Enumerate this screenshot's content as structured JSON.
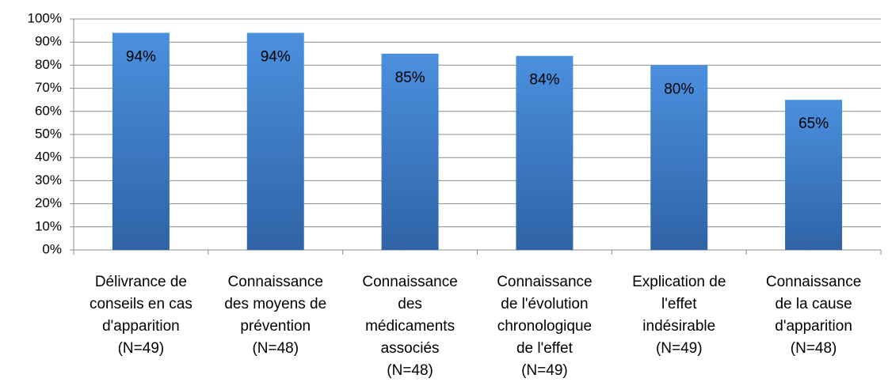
{
  "chart_data": {
    "type": "bar",
    "categories": [
      [
        "Délivrance de",
        "conseils en cas",
        "d'apparition",
        "(N=49)"
      ],
      [
        "Connaissance",
        "des moyens de",
        "prévention",
        "(N=48)"
      ],
      [
        "Connaissance",
        "des",
        "médicaments",
        "associés",
        "(N=48)"
      ],
      [
        "Connaissance",
        "de l'évolution",
        "chronologique",
        "de l'effet",
        "(N=49)"
      ],
      [
        "Explication de",
        "l'effet",
        "indésirable",
        "(N=49)"
      ],
      [
        "Connaissance",
        "de la cause",
        "d'apparition",
        "(N=48)"
      ]
    ],
    "values": [
      94,
      94,
      85,
      84,
      80,
      65
    ],
    "value_labels": [
      "94%",
      "94%",
      "85%",
      "84%",
      "80%",
      "65%"
    ],
    "color": "#3c7cc9",
    "ylim": [
      0,
      100
    ],
    "yticks": [
      {
        "value": 0,
        "label": "0%"
      },
      {
        "value": 10,
        "label": "10%"
      },
      {
        "value": 20,
        "label": "20%"
      },
      {
        "value": 30,
        "label": "30%"
      },
      {
        "value": 40,
        "label": "40%"
      },
      {
        "value": 50,
        "label": "50%"
      },
      {
        "value": 60,
        "label": "60%"
      },
      {
        "value": 70,
        "label": "70%"
      },
      {
        "value": 80,
        "label": "80%"
      },
      {
        "value": 90,
        "label": "90%"
      },
      {
        "value": 100,
        "label": "100%"
      }
    ],
    "grid": true
  }
}
